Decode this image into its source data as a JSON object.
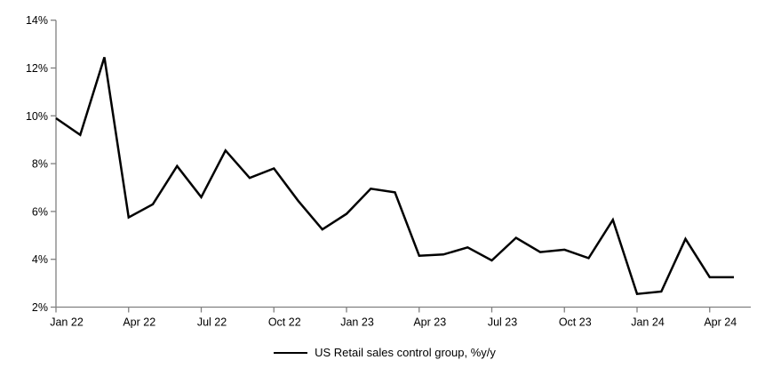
{
  "chart_data": {
    "type": "line",
    "title": "",
    "xlabel": "",
    "ylabel": "",
    "ylim": [
      2,
      14
    ],
    "y_tick_step": 2,
    "y_tick_labels": [
      "2%",
      "4%",
      "6%",
      "8%",
      "10%",
      "12%",
      "14%"
    ],
    "x_tick_every": 3,
    "x_tick_labels": [
      "Jan 22",
      "Apr 22",
      "Jul 22",
      "Oct 22",
      "Jan 23",
      "Apr 23",
      "Jul 23",
      "Oct 23",
      "Jan 24",
      "Apr 24"
    ],
    "grid": false,
    "legend_position": "bottom-center",
    "categories": [
      "Jan 22",
      "Feb 22",
      "Mar 22",
      "Apr 22",
      "May 22",
      "Jun 22",
      "Jul 22",
      "Aug 22",
      "Sep 22",
      "Oct 22",
      "Nov 22",
      "Dec 22",
      "Jan 23",
      "Feb 23",
      "Mar 23",
      "Apr 23",
      "May 23",
      "Jun 23",
      "Jul 23",
      "Aug 23",
      "Sep 23",
      "Oct 23",
      "Nov 23",
      "Dec 23",
      "Jan 24",
      "Feb 24",
      "Mar 24",
      "Apr 24",
      "May 24"
    ],
    "series": [
      {
        "name": "US Retail sales control group, %y/y",
        "color": "#000000",
        "values": [
          9.9,
          9.2,
          12.45,
          5.75,
          6.3,
          7.9,
          6.6,
          8.55,
          7.4,
          7.8,
          6.45,
          5.25,
          5.9,
          6.95,
          6.8,
          4.15,
          4.2,
          4.5,
          3.95,
          4.9,
          4.3,
          4.4,
          4.05,
          5.65,
          2.55,
          2.65,
          4.85,
          3.25,
          3.25
        ]
      }
    ],
    "axis_color": "#808080",
    "label_color": "#000000",
    "background_color": "#ffffff"
  },
  "legend": {
    "label": "US Retail sales control group, %y/y"
  }
}
